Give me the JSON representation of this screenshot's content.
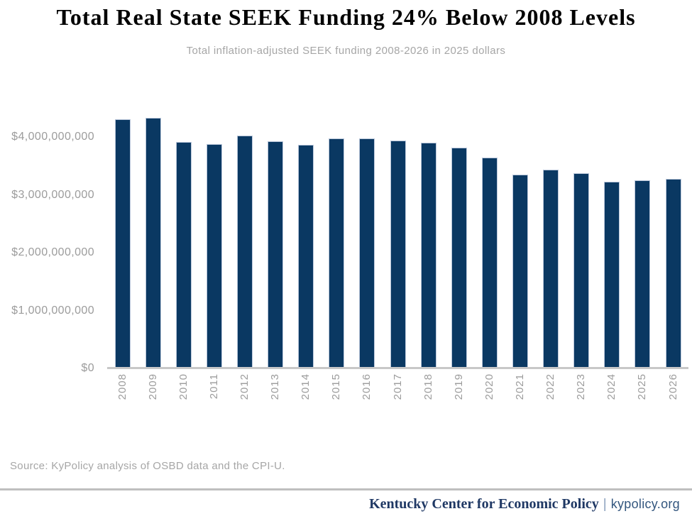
{
  "title": "Total Real State SEEK Funding 24% Below 2008 Levels",
  "subtitle": "Total inflation-adjusted SEEK funding 2008-2026 in 2025 dollars",
  "source": "Source: KyPolicy analysis of OSBD data and the CPI-U.",
  "footer": {
    "org": "Kentucky Center for Economic Policy",
    "separator": "|",
    "site": "kypolicy.org"
  },
  "colors": {
    "bar": "#0a3862",
    "bar_border": "#b9c6da",
    "axis_text": "#9c9c9c",
    "muted_text": "#a6a6a6",
    "axis_line": "#c8c8c8",
    "divider": "#bfbfbf",
    "footer_navy": "#1f3864",
    "footer_site": "#33567e"
  },
  "chart_data": {
    "type": "bar",
    "title": "Total Real State SEEK Funding 24% Below 2008 Levels",
    "subtitle": "Total inflation-adjusted SEEK funding 2008-2026 in 2025 dollars",
    "categories": [
      "2008",
      "2009",
      "2010",
      "2011",
      "2012",
      "2013",
      "2014",
      "2015",
      "2016",
      "2017",
      "2018",
      "2019",
      "2020",
      "2021",
      "2022",
      "2023",
      "2024",
      "2025",
      "2026"
    ],
    "values": [
      4310000000,
      4330000000,
      3910000000,
      3880000000,
      4030000000,
      3930000000,
      3870000000,
      3970000000,
      3980000000,
      3940000000,
      3900000000,
      3810000000,
      3640000000,
      3350000000,
      3430000000,
      3380000000,
      3230000000,
      3250000000,
      3280000000
    ],
    "xlabel": "",
    "ylabel": "",
    "ylim": [
      0,
      4400000000
    ],
    "yticks": [
      {
        "value": 0,
        "label": "$0"
      },
      {
        "value": 1000000000,
        "label": "$1,000,000,000"
      },
      {
        "value": 2000000000,
        "label": "$2,000,000,000"
      },
      {
        "value": 3000000000,
        "label": "$3,000,000,000"
      },
      {
        "value": 4000000000,
        "label": "$4,000,000,000"
      }
    ],
    "grid": false,
    "legend": false,
    "bar_color": "#0a3862",
    "x_tick_rotation": 90
  }
}
